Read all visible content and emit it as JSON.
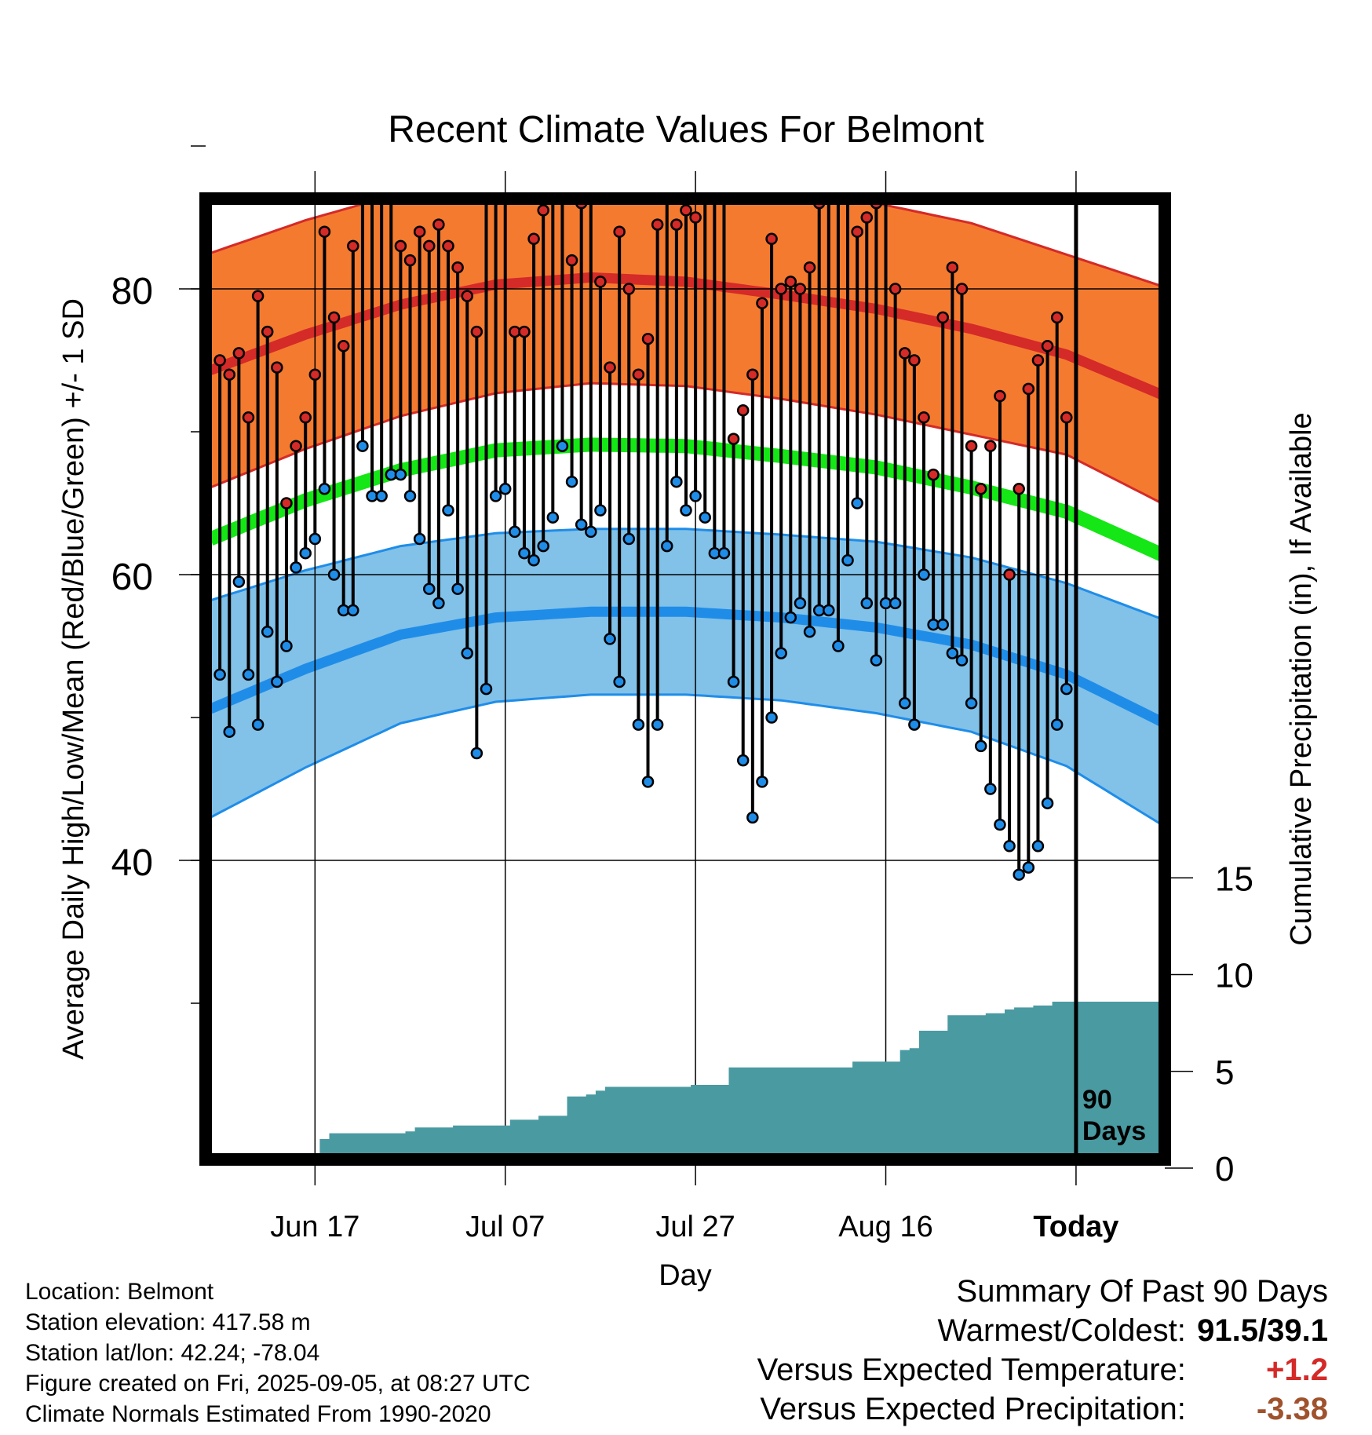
{
  "title": "Recent Climate Values For Belmont",
  "colors": {
    "high_band": "#f47a30",
    "high_line": "#d42a28",
    "low_band": "#82c1e8",
    "low_line": "#1f8de8",
    "mean_line": "#15e615",
    "precip": "#4a9aa2",
    "high_marker": "#d42a28",
    "low_marker": "#1f8de8",
    "positive": "#d42a28",
    "negative": "#a0522d"
  },
  "chart_data": {
    "type": "line",
    "title": "Recent Climate Values For Belmont",
    "xlabel": "Day",
    "ylabel": "Average Daily High/Low/Mean (Red/Blue/Green) +/- 1 SD",
    "y2label": "Cumulative Precipitation (in), If Available",
    "x_ticks": [
      "Jun 17",
      "Jul 07",
      "Jul 27",
      "Aug 16",
      "Today"
    ],
    "x_tick_day_index": [
      11,
      31,
      51,
      71,
      91
    ],
    "ylim": [
      29,
      98
    ],
    "y_ticks": [
      40,
      60,
      80
    ],
    "y2lim": [
      0,
      50
    ],
    "y2_ticks": [
      0,
      5,
      10,
      15
    ],
    "grid": true,
    "today_label": "90 Days",
    "normals": {
      "day_index": [
        0,
        10,
        20,
        30,
        40,
        50,
        60,
        70,
        80,
        90,
        100
      ],
      "high_mean": [
        74.3,
        76.8,
        78.9,
        80.3,
        80.8,
        80.5,
        79.6,
        78.6,
        77.2,
        75.4,
        72.6
      ],
      "high_sd": [
        8.2,
        8.0,
        7.8,
        7.6,
        7.4,
        7.3,
        7.3,
        7.4,
        7.4,
        7.0,
        7.6
      ],
      "mean_mean": [
        62.5,
        65.2,
        67.3,
        68.7,
        69.1,
        69.0,
        68.3,
        67.5,
        66.1,
        64.4,
        61.4
      ],
      "low_mean": [
        50.6,
        53.4,
        55.8,
        57.0,
        57.4,
        57.4,
        57.0,
        56.3,
        55.1,
        53.0,
        49.7
      ],
      "low_sd": [
        7.6,
        6.9,
        6.2,
        5.9,
        5.8,
        5.8,
        5.8,
        6.0,
        6.1,
        6.4,
        7.2
      ]
    },
    "series": [
      {
        "name": "High",
        "day_index": [
          1,
          2,
          3,
          4,
          5,
          6,
          7,
          8,
          9,
          10,
          11,
          12,
          13,
          14,
          15,
          16,
          17,
          18,
          19,
          20,
          21,
          22,
          23,
          24,
          25,
          26,
          27,
          28,
          29,
          30,
          31,
          32,
          33,
          34,
          35,
          36,
          37,
          38,
          39,
          40,
          41,
          42,
          43,
          44,
          45,
          46,
          47,
          48,
          49,
          50,
          51,
          52,
          53,
          54,
          55,
          56,
          57,
          58,
          59,
          60,
          61,
          62,
          63,
          64,
          65,
          66,
          67,
          68,
          69,
          70,
          71,
          72,
          73,
          74,
          75,
          76,
          77,
          78,
          79,
          80,
          81,
          82,
          83,
          84,
          85,
          86,
          87,
          88,
          89,
          90
        ],
        "values": [
          75,
          74,
          75.5,
          71,
          79.5,
          77,
          74.5,
          65,
          69,
          71,
          74,
          84,
          78,
          76,
          83,
          90,
          91.5,
          91,
          87.5,
          83,
          82,
          84,
          83,
          84.5,
          83,
          81.5,
          79.5,
          77,
          89.5,
          90,
          89,
          77,
          77,
          83.5,
          85.5,
          91,
          87,
          82,
          86,
          88,
          80.5,
          74.5,
          84,
          80,
          74,
          76.5,
          84.5,
          90.5,
          84.5,
          85.5,
          85,
          89.5,
          89,
          88,
          69.5,
          71.5,
          74,
          79,
          83.5,
          80,
          80.5,
          80,
          81.5,
          86,
          88,
          89,
          91.5,
          84,
          85,
          86,
          87,
          80,
          75.5,
          75,
          71,
          67,
          78,
          81.5,
          80,
          69,
          66,
          69,
          72.5,
          60,
          66,
          73,
          75,
          76,
          78,
          71
        ]
      },
      {
        "name": "Low",
        "day_index": [
          1,
          2,
          3,
          4,
          5,
          6,
          7,
          8,
          9,
          10,
          11,
          12,
          13,
          14,
          15,
          16,
          17,
          18,
          19,
          20,
          21,
          22,
          23,
          24,
          25,
          26,
          27,
          28,
          29,
          30,
          31,
          32,
          33,
          34,
          35,
          36,
          37,
          38,
          39,
          40,
          41,
          42,
          43,
          44,
          45,
          46,
          47,
          48,
          49,
          50,
          51,
          52,
          53,
          54,
          55,
          56,
          57,
          58,
          59,
          60,
          61,
          62,
          63,
          64,
          65,
          66,
          67,
          68,
          69,
          70,
          71,
          72,
          73,
          74,
          75,
          76,
          77,
          78,
          79,
          80,
          81,
          82,
          83,
          84,
          85,
          86,
          87,
          88,
          89,
          90
        ],
        "values": [
          53,
          49,
          59.5,
          53,
          49.5,
          56,
          52.5,
          55,
          60.5,
          61.5,
          62.5,
          66,
          60,
          57.5,
          57.5,
          69,
          65.5,
          65.5,
          67,
          67,
          65.5,
          62.5,
          59,
          58,
          64.5,
          59,
          54.5,
          47.5,
          52,
          65.5,
          66,
          63,
          61.5,
          61,
          62,
          64,
          69,
          66.5,
          63.5,
          63,
          64.5,
          55.5,
          52.5,
          62.5,
          49.5,
          45.5,
          49.5,
          62,
          66.5,
          64.5,
          65.5,
          64,
          61.5,
          61.5,
          52.5,
          47,
          43,
          45.5,
          50,
          54.5,
          57,
          58,
          56,
          57.5,
          57.5,
          55,
          61,
          65,
          58,
          54,
          58,
          58,
          51,
          49.5,
          60,
          56.5,
          56.5,
          54.5,
          54,
          51,
          48,
          45,
          42.5,
          41,
          39,
          39.5,
          41,
          44,
          49.5,
          52
        ]
      },
      {
        "name": "Precipitation",
        "day_index": [
          1,
          2,
          3,
          4,
          5,
          6,
          7,
          8,
          9,
          10,
          11,
          12,
          13,
          14,
          15,
          16,
          17,
          18,
          19,
          20,
          21,
          22,
          23,
          24,
          25,
          26,
          27,
          28,
          29,
          30,
          31,
          32,
          33,
          34,
          35,
          36,
          37,
          38,
          39,
          40,
          41,
          42,
          43,
          44,
          45,
          46,
          47,
          48,
          49,
          50,
          51,
          52,
          53,
          54,
          55,
          56,
          57,
          58,
          59,
          60,
          61,
          62,
          63,
          64,
          65,
          66,
          67,
          68,
          69,
          70,
          71,
          72,
          73,
          74,
          75,
          76,
          77,
          78,
          79,
          80,
          81,
          82,
          83,
          84,
          85,
          86,
          87,
          88,
          89,
          90
        ],
        "values": [
          0.1,
          0.6,
          0.6,
          0.6,
          0.6,
          0.6,
          0.6,
          0.7,
          0.7,
          0.7,
          0.7,
          1.5,
          1.8,
          1.8,
          1.8,
          1.8,
          1.8,
          1.8,
          1.8,
          1.8,
          1.9,
          2.1,
          2.1,
          2.1,
          2.1,
          2.2,
          2.2,
          2.2,
          2.2,
          2.2,
          2.2,
          2.5,
          2.5,
          2.5,
          2.7,
          2.7,
          2.7,
          3.7,
          3.7,
          3.8,
          4.0,
          4.2,
          4.2,
          4.2,
          4.2,
          4.2,
          4.2,
          4.2,
          4.2,
          4.2,
          4.3,
          4.3,
          4.3,
          4.3,
          5.2,
          5.2,
          5.2,
          5.2,
          5.2,
          5.2,
          5.2,
          5.2,
          5.2,
          5.2,
          5.2,
          5.2,
          5.2,
          5.5,
          5.5,
          5.5,
          5.5,
          5.5,
          6.1,
          6.2,
          7.1,
          7.1,
          7.1,
          7.9,
          7.9,
          7.9,
          7.9,
          8.0,
          8.0,
          8.2,
          8.3,
          8.3,
          8.4,
          8.4,
          8.6,
          8.6
        ]
      }
    ]
  },
  "meta": {
    "lines": [
      "Location: Belmont",
      "Station elevation: 417.58 m",
      "Station lat/lon: 42.24; -78.04",
      "Figure created on Fri, 2025-09-05, at 08:27 UTC",
      "Climate Normals Estimated From 1990-2020"
    ]
  },
  "summary": {
    "heading": "Summary Of Past 90 Days",
    "warm_cold_label": "Warmest/Coldest:",
    "warm_cold_value": "91.5/39.1",
    "temp_label": "Versus Expected Temperature:",
    "temp_value": "+1.2",
    "precip_label": "Versus Expected Precipitation:",
    "precip_value": "-3.38"
  }
}
